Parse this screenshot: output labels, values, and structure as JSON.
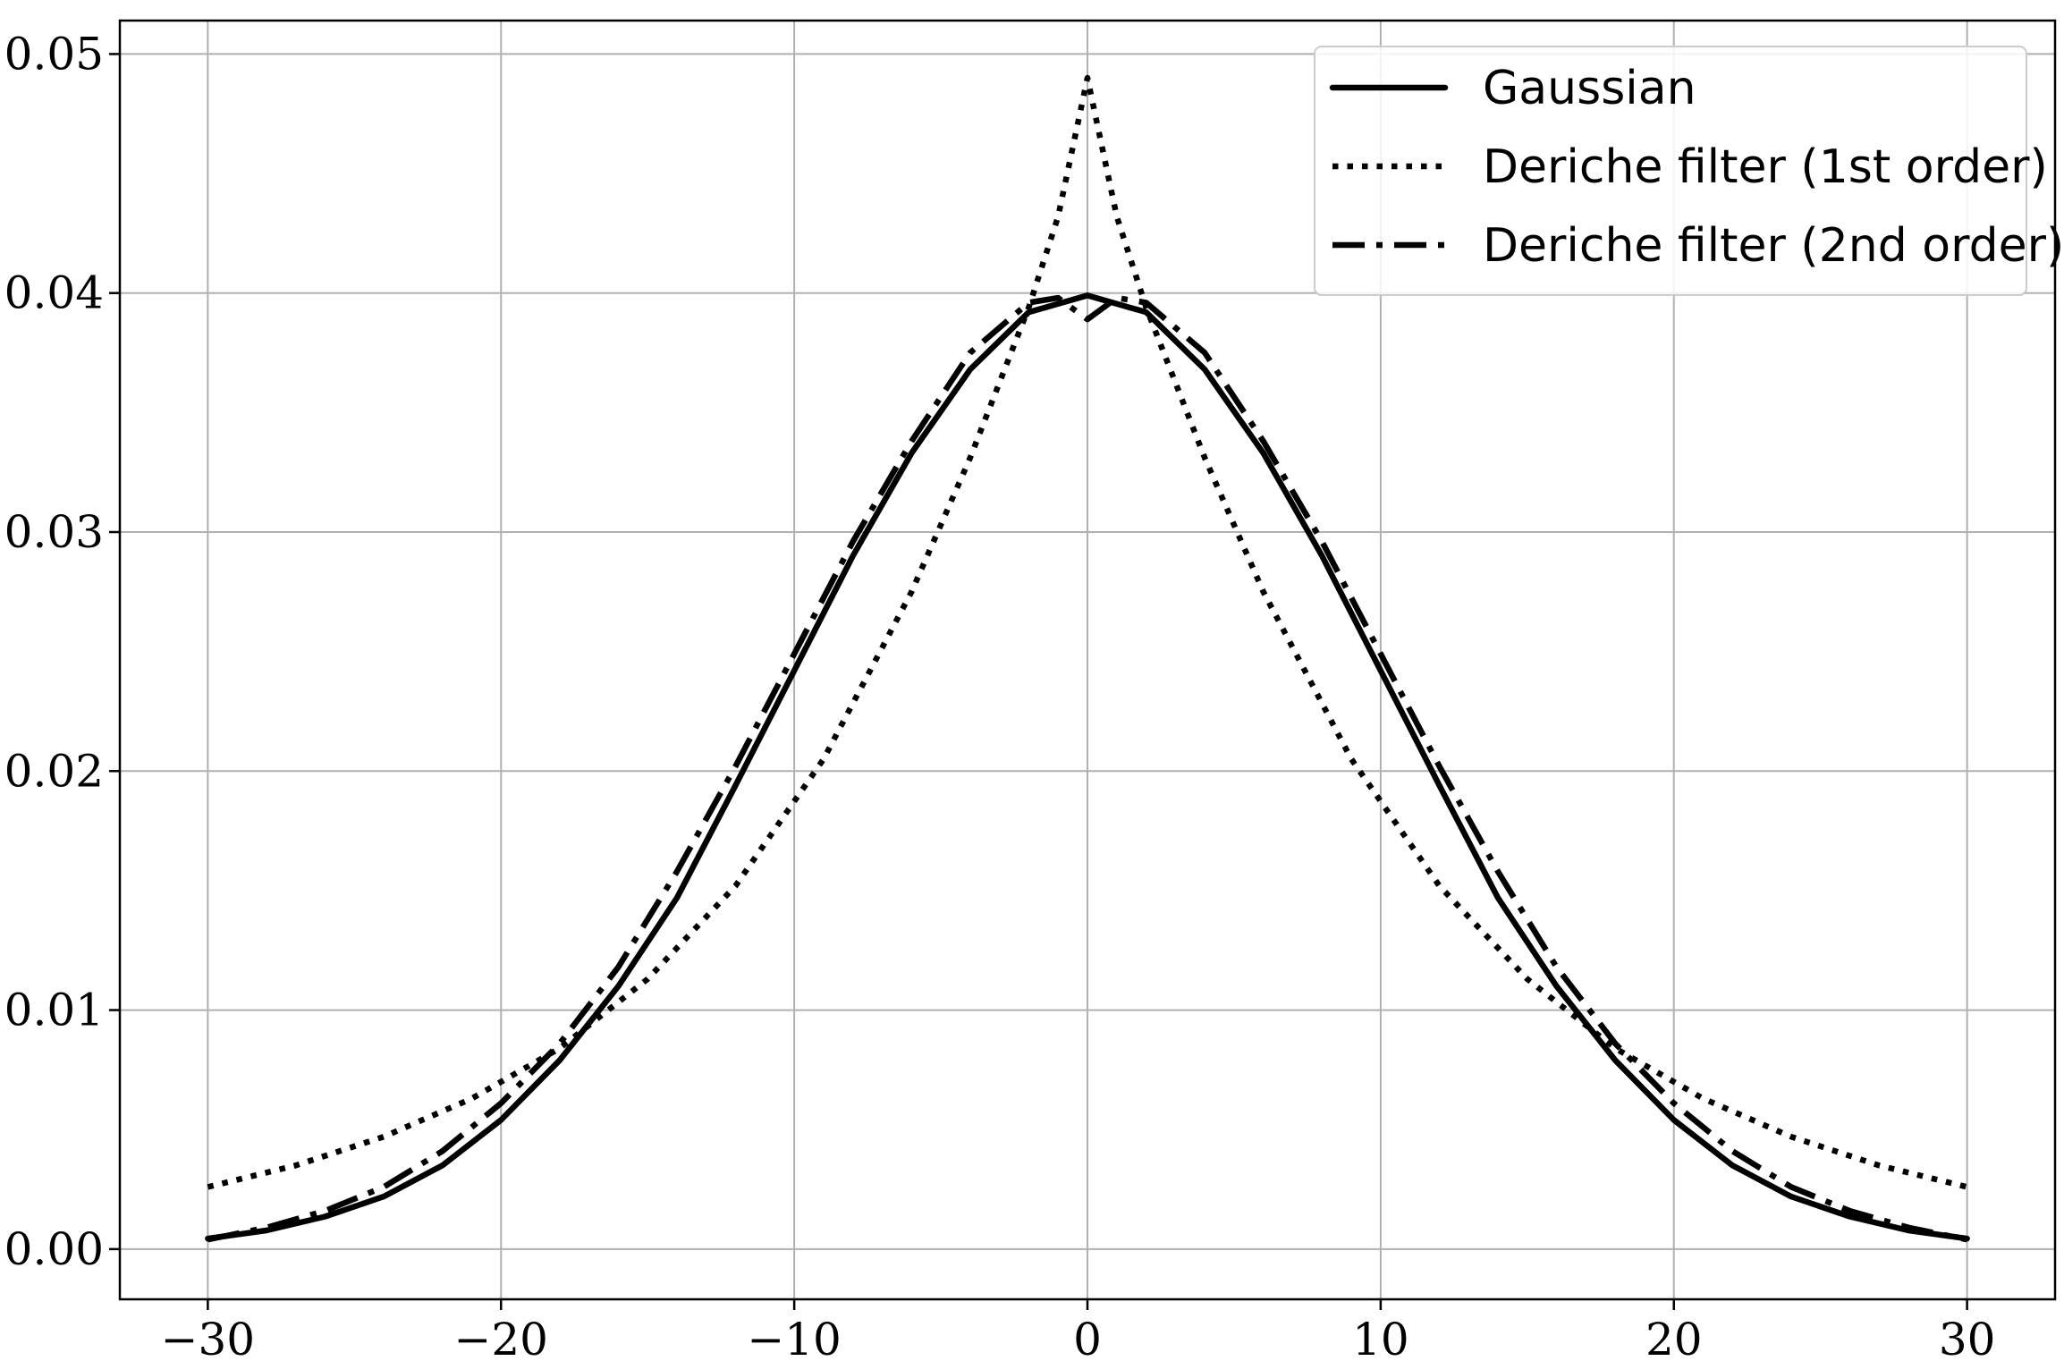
{
  "chart_data": {
    "type": "line",
    "title": "",
    "xlabel": "",
    "ylabel": "",
    "xlim": [
      -33,
      33
    ],
    "ylim": [
      -0.0021,
      0.0514
    ],
    "grid": true,
    "legend_position": "top-right",
    "x_ticks": [
      -30,
      -20,
      -10,
      0,
      10,
      20,
      30
    ],
    "x_tick_labels": [
      "−30",
      "−20",
      "−10",
      "0",
      "10",
      "20",
      "30"
    ],
    "y_ticks": [
      0.0,
      0.01,
      0.02,
      0.03,
      0.04,
      0.05
    ],
    "y_tick_labels": [
      "0.00",
      "0.01",
      "0.02",
      "0.03",
      "0.04",
      "0.05"
    ],
    "series": [
      {
        "name": "Gaussian",
        "style": "solid",
        "x": [
          -30,
          -28,
          -26,
          -24,
          -22,
          -20,
          -18,
          -16,
          -14,
          -12,
          -10,
          -8,
          -6,
          -4,
          -2,
          0,
          2,
          4,
          6,
          8,
          10,
          12,
          14,
          16,
          18,
          20,
          22,
          24,
          26,
          28,
          30
        ],
        "y": [
          0.00044,
          0.00078,
          0.00136,
          0.0022,
          0.0035,
          0.0054,
          0.0079,
          0.011,
          0.0147,
          0.0194,
          0.0242,
          0.029,
          0.0333,
          0.0368,
          0.0392,
          0.0399,
          0.0392,
          0.0368,
          0.0333,
          0.029,
          0.0242,
          0.0194,
          0.0147,
          0.011,
          0.0079,
          0.0054,
          0.0035,
          0.0022,
          0.00136,
          0.00078,
          0.00044
        ]
      },
      {
        "name": "Deriche filter (1st order)",
        "style": "dotted",
        "x": [
          -30,
          -27,
          -24,
          -21,
          -18,
          -15,
          -12,
          -9,
          -6,
          -4,
          -2,
          -1,
          0,
          1,
          2,
          4,
          6,
          9,
          12,
          15,
          18,
          21,
          24,
          27,
          30
        ],
        "y": [
          0.0026,
          0.0035,
          0.0047,
          0.0063,
          0.0084,
          0.0113,
          0.0152,
          0.0205,
          0.0275,
          0.0331,
          0.0394,
          0.0432,
          0.049,
          0.0432,
          0.0394,
          0.0331,
          0.0275,
          0.0205,
          0.0152,
          0.0113,
          0.0084,
          0.0063,
          0.0047,
          0.0035,
          0.0026
        ]
      },
      {
        "name": "Deriche filter (2nd order)",
        "style": "dashdot",
        "x": [
          -30,
          -28,
          -26,
          -24,
          -22,
          -20,
          -18,
          -16,
          -14,
          -12,
          -10,
          -8,
          -6,
          -4,
          -2,
          -1,
          0,
          1,
          2,
          4,
          6,
          8,
          10,
          12,
          14,
          16,
          18,
          20,
          22,
          24,
          26,
          28,
          30
        ],
        "y": [
          0.0004,
          0.0009,
          0.0016,
          0.0026,
          0.0041,
          0.0061,
          0.0086,
          0.0118,
          0.0158,
          0.0202,
          0.0249,
          0.0296,
          0.0338,
          0.0375,
          0.0396,
          0.0398,
          0.0389,
          0.0398,
          0.0396,
          0.0375,
          0.0338,
          0.0296,
          0.0249,
          0.0202,
          0.0158,
          0.0118,
          0.0086,
          0.0061,
          0.0041,
          0.0026,
          0.0016,
          0.0009,
          0.0004
        ]
      }
    ]
  }
}
